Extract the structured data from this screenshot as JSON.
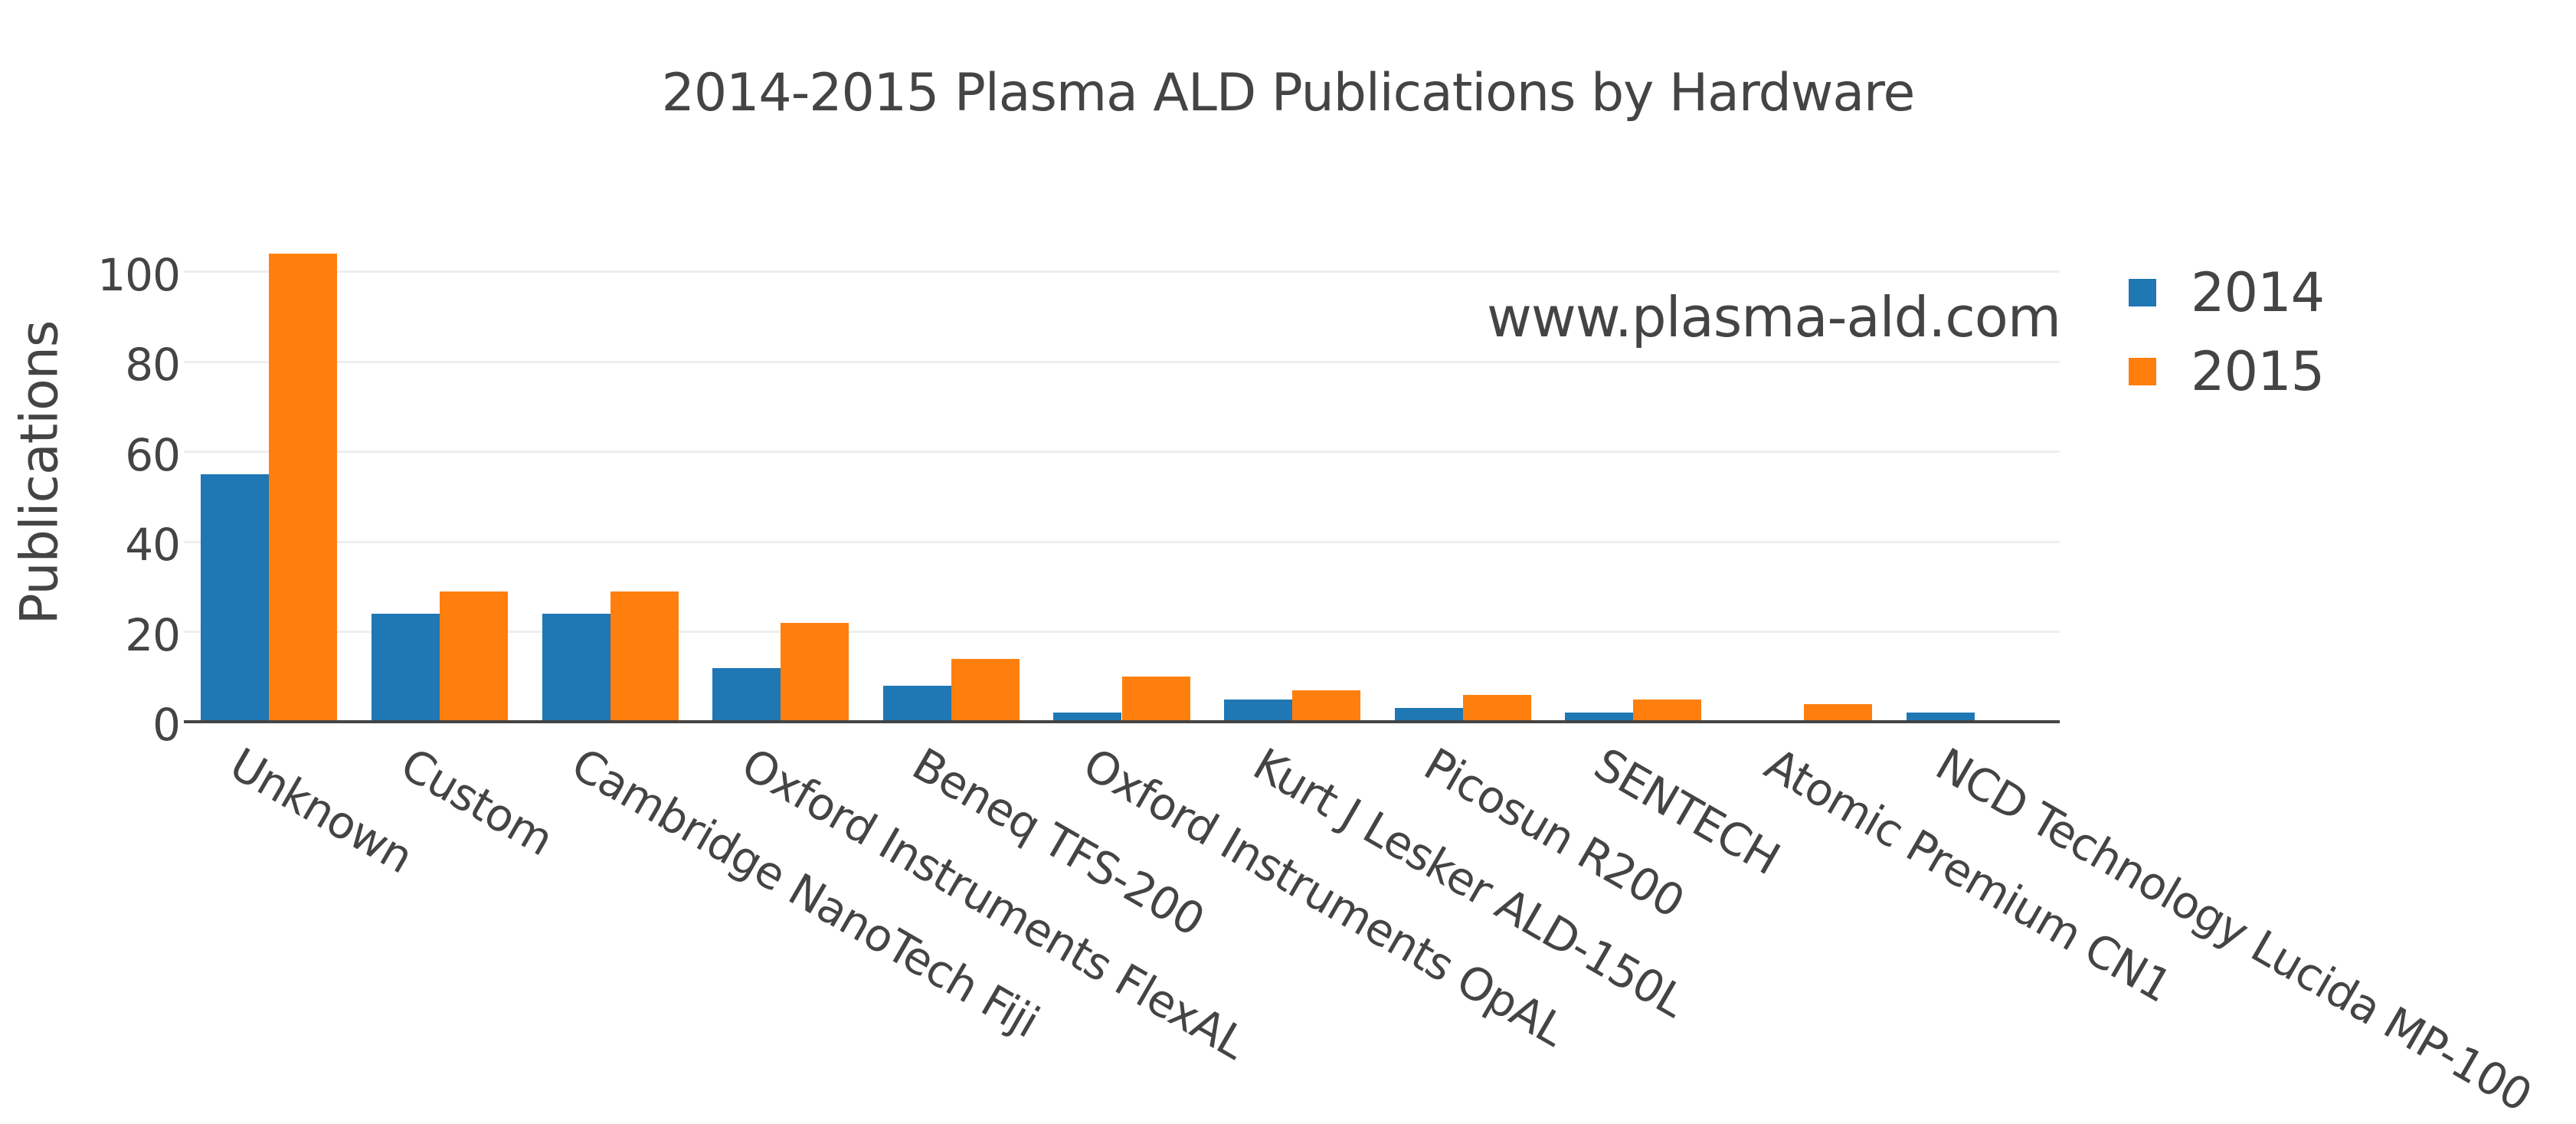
{
  "chart_data": {
    "type": "bar",
    "title": "2014-2015 Plasma ALD Publications by Hardware",
    "xlabel": "",
    "ylabel": "Publications",
    "ylim": [
      0,
      109.5
    ],
    "yticks": [
      0,
      20,
      40,
      60,
      80,
      100
    ],
    "grid": true,
    "legend_position": "right-top",
    "barmode": "group",
    "categories": [
      "Unknown",
      "Custom",
      "Cambridge NanoTech Fiji",
      "Oxford Instruments FlexAL",
      "Beneq TFS-200",
      "Oxford Instruments OpAL",
      "Kurt J Lesker ALD-150L",
      "Picosun R200",
      "SENTECH",
      "Atomic Premium CN1",
      "NCD Technology Lucida MP-100"
    ],
    "series": [
      {
        "name": "2014",
        "color": "#1f77b4",
        "values": [
          55,
          24,
          24,
          12,
          8,
          2,
          5,
          3,
          2,
          0,
          2
        ]
      },
      {
        "name": "2015",
        "color": "#ff7f0e",
        "values": [
          104,
          29,
          29,
          22,
          14,
          10,
          7,
          6,
          5,
          4,
          0
        ]
      }
    ],
    "annotations": [
      "www.plasma-ald.com"
    ],
    "xtick_angle": 30
  },
  "header": {
    "title": "2014-2015 Plasma ALD Publications by Hardware"
  },
  "axes": {
    "y_title": "Publications",
    "y_tick_labels": [
      "0",
      "20",
      "40",
      "60",
      "80",
      "100"
    ]
  },
  "watermark": "www.plasma-ald.com",
  "legend": {
    "items": [
      {
        "label": "2014",
        "color": "#1f77b4"
      },
      {
        "label": "2015",
        "color": "#ff7f0e"
      }
    ]
  }
}
